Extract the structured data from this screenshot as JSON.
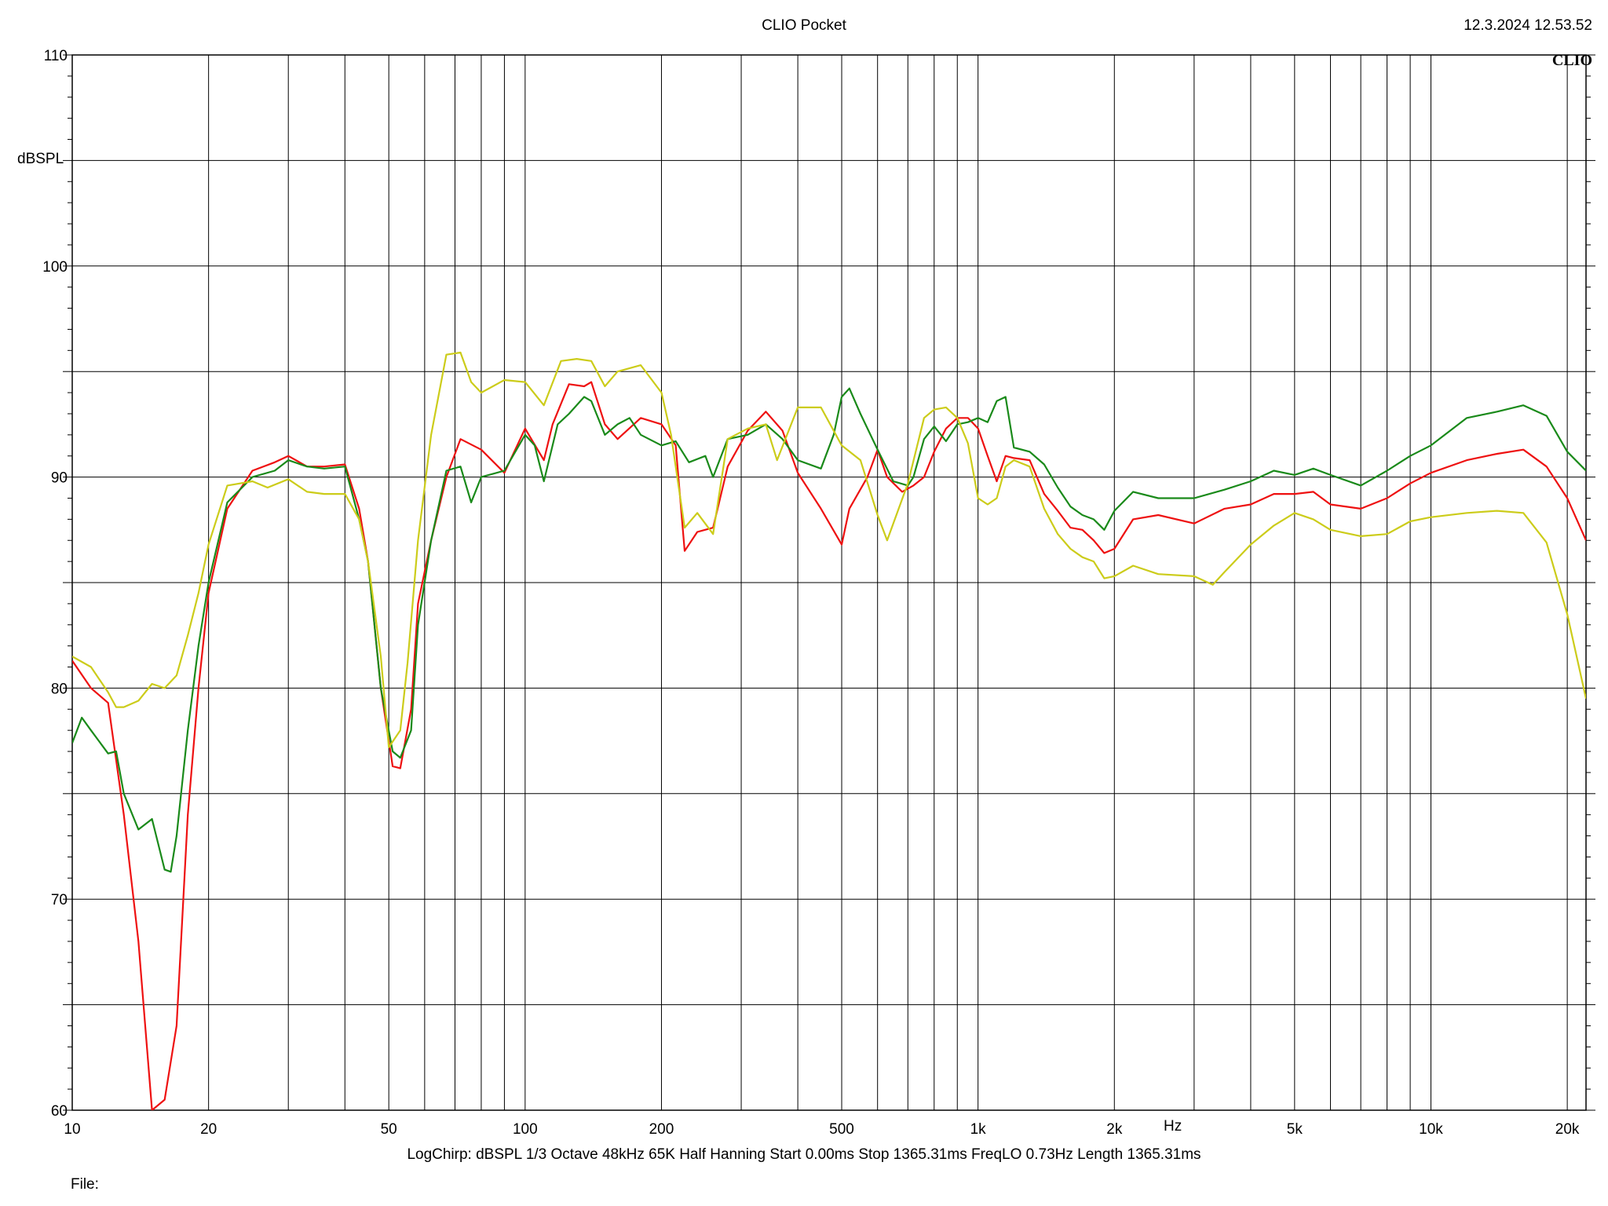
{
  "title": "CLIO Pocket",
  "timestamp": "12.3.2024 12.53.52",
  "logo": "CLIO",
  "footer": "LogChirp:  dBSPL   1/3 Octave   48kHz   65K   Half Hanning   Start 0.00ms    Stop 1365.31ms    FreqLO 0.73Hz    Length 1365.31ms",
  "file_label": "File:",
  "chart_data": {
    "type": "line",
    "title": "CLIO Pocket",
    "xlabel": "Hz",
    "ylabel": "dBSPL",
    "xscale": "log",
    "xlim": [
      10,
      22000
    ],
    "ylim": [
      60,
      110
    ],
    "grid": true,
    "x_tick_labels": [
      {
        "value": 10,
        "label": "10"
      },
      {
        "value": 20,
        "label": "20"
      },
      {
        "value": 50,
        "label": "50"
      },
      {
        "value": 100,
        "label": "100"
      },
      {
        "value": 200,
        "label": "200"
      },
      {
        "value": 500,
        "label": "500"
      },
      {
        "value": 1000,
        "label": "1k"
      },
      {
        "value": 2000,
        "label": "2k"
      },
      {
        "value": 5000,
        "label": "5k"
      },
      {
        "value": 10000,
        "label": "10k"
      },
      {
        "value": 20000,
        "label": "20k"
      }
    ],
    "y_tick_labels": [
      {
        "value": 60,
        "label": "60"
      },
      {
        "value": 70,
        "label": "70"
      },
      {
        "value": 80,
        "label": "80"
      },
      {
        "value": 90,
        "label": "90"
      },
      {
        "value": 100,
        "label": "100"
      },
      {
        "value": 110,
        "label": "110"
      }
    ],
    "series": [
      {
        "color": "#ee1111",
        "points": [
          [
            10,
            81.3
          ],
          [
            11,
            80
          ],
          [
            12,
            79.3
          ],
          [
            13,
            74
          ],
          [
            14,
            68
          ],
          [
            15,
            60
          ],
          [
            16,
            60.5
          ],
          [
            17,
            64
          ],
          [
            18,
            74
          ],
          [
            19,
            80
          ],
          [
            20,
            84.5
          ],
          [
            22,
            88.5
          ],
          [
            25,
            90.3
          ],
          [
            28,
            90.7
          ],
          [
            30,
            91
          ],
          [
            33,
            90.5
          ],
          [
            36,
            90.5
          ],
          [
            40,
            90.6
          ],
          [
            43,
            88.5
          ],
          [
            45,
            86
          ],
          [
            48,
            80
          ],
          [
            51,
            76.3
          ],
          [
            53,
            76.2
          ],
          [
            56,
            79
          ],
          [
            58,
            84
          ],
          [
            62,
            87
          ],
          [
            67,
            90
          ],
          [
            72,
            91.8
          ],
          [
            80,
            91.3
          ],
          [
            90,
            90.2
          ],
          [
            100,
            92.3
          ],
          [
            110,
            90.8
          ],
          [
            115,
            92.5
          ],
          [
            125,
            94.4
          ],
          [
            135,
            94.3
          ],
          [
            140,
            94.5
          ],
          [
            150,
            92.5
          ],
          [
            160,
            91.8
          ],
          [
            180,
            92.8
          ],
          [
            200,
            92.5
          ],
          [
            215,
            91.5
          ],
          [
            225,
            86.5
          ],
          [
            240,
            87.4
          ],
          [
            260,
            87.6
          ],
          [
            280,
            90.5
          ],
          [
            310,
            92.2
          ],
          [
            340,
            93.1
          ],
          [
            370,
            92.2
          ],
          [
            400,
            90.2
          ],
          [
            450,
            88.5
          ],
          [
            500,
            86.8
          ],
          [
            520,
            88.5
          ],
          [
            570,
            90
          ],
          [
            600,
            91.3
          ],
          [
            630,
            90
          ],
          [
            680,
            89.3
          ],
          [
            720,
            89.6
          ],
          [
            760,
            90
          ],
          [
            800,
            91.2
          ],
          [
            850,
            92.3
          ],
          [
            900,
            92.8
          ],
          [
            950,
            92.8
          ],
          [
            1000,
            92.3
          ],
          [
            1050,
            91
          ],
          [
            1100,
            89.8
          ],
          [
            1150,
            91
          ],
          [
            1200,
            90.9
          ],
          [
            1300,
            90.8
          ],
          [
            1400,
            89.2
          ],
          [
            1500,
            88.4
          ],
          [
            1600,
            87.6
          ],
          [
            1700,
            87.5
          ],
          [
            1800,
            87
          ],
          [
            1900,
            86.4
          ],
          [
            2000,
            86.6
          ],
          [
            2200,
            88
          ],
          [
            2500,
            88.2
          ],
          [
            3000,
            87.8
          ],
          [
            3500,
            88.5
          ],
          [
            4000,
            88.7
          ],
          [
            4500,
            89.2
          ],
          [
            5000,
            89.2
          ],
          [
            5500,
            89.3
          ],
          [
            6000,
            88.7
          ],
          [
            7000,
            88.5
          ],
          [
            8000,
            89
          ],
          [
            9000,
            89.7
          ],
          [
            10000,
            90.2
          ],
          [
            12000,
            90.8
          ],
          [
            14000,
            91.1
          ],
          [
            16000,
            91.3
          ],
          [
            18000,
            90.5
          ],
          [
            20000,
            89
          ],
          [
            22000,
            87
          ]
        ]
      },
      {
        "color": "#1a8a1a",
        "points": [
          [
            10,
            77.4
          ],
          [
            10.5,
            78.6
          ],
          [
            11,
            78
          ],
          [
            12,
            76.9
          ],
          [
            12.5,
            77
          ],
          [
            13,
            75
          ],
          [
            14,
            73.3
          ],
          [
            15,
            73.8
          ],
          [
            16,
            71.4
          ],
          [
            16.5,
            71.3
          ],
          [
            17,
            73
          ],
          [
            18,
            78
          ],
          [
            19,
            82
          ],
          [
            20,
            85
          ],
          [
            22,
            88.8
          ],
          [
            25,
            90
          ],
          [
            28,
            90.3
          ],
          [
            30,
            90.8
          ],
          [
            33,
            90.5
          ],
          [
            36,
            90.4
          ],
          [
            40,
            90.5
          ],
          [
            43,
            88
          ],
          [
            45,
            86
          ],
          [
            48,
            80
          ],
          [
            51,
            77
          ],
          [
            53,
            76.7
          ],
          [
            56,
            78
          ],
          [
            58,
            83
          ],
          [
            62,
            87
          ],
          [
            67,
            90.3
          ],
          [
            72,
            90.5
          ],
          [
            76,
            88.8
          ],
          [
            80,
            90
          ],
          [
            90,
            90.3
          ],
          [
            100,
            92
          ],
          [
            105,
            91.5
          ],
          [
            110,
            89.8
          ],
          [
            118,
            92.5
          ],
          [
            125,
            93
          ],
          [
            135,
            93.8
          ],
          [
            140,
            93.6
          ],
          [
            150,
            92
          ],
          [
            160,
            92.5
          ],
          [
            170,
            92.8
          ],
          [
            180,
            92
          ],
          [
            200,
            91.5
          ],
          [
            215,
            91.7
          ],
          [
            230,
            90.7
          ],
          [
            250,
            91
          ],
          [
            260,
            90
          ],
          [
            280,
            91.8
          ],
          [
            310,
            92
          ],
          [
            340,
            92.5
          ],
          [
            370,
            91.8
          ],
          [
            400,
            90.8
          ],
          [
            450,
            90.4
          ],
          [
            480,
            92
          ],
          [
            500,
            93.8
          ],
          [
            520,
            94.2
          ],
          [
            550,
            93
          ],
          [
            600,
            91.3
          ],
          [
            650,
            89.8
          ],
          [
            700,
            89.6
          ],
          [
            720,
            90
          ],
          [
            760,
            91.8
          ],
          [
            800,
            92.4
          ],
          [
            850,
            91.7
          ],
          [
            900,
            92.5
          ],
          [
            950,
            92.6
          ],
          [
            1000,
            92.8
          ],
          [
            1050,
            92.6
          ],
          [
            1100,
            93.6
          ],
          [
            1150,
            93.8
          ],
          [
            1200,
            91.4
          ],
          [
            1300,
            91.2
          ],
          [
            1400,
            90.6
          ],
          [
            1500,
            89.5
          ],
          [
            1600,
            88.6
          ],
          [
            1700,
            88.2
          ],
          [
            1800,
            88
          ],
          [
            1900,
            87.5
          ],
          [
            2000,
            88.4
          ],
          [
            2200,
            89.3
          ],
          [
            2500,
            89
          ],
          [
            3000,
            89
          ],
          [
            3500,
            89.4
          ],
          [
            4000,
            89.8
          ],
          [
            4500,
            90.3
          ],
          [
            5000,
            90.1
          ],
          [
            5500,
            90.4
          ],
          [
            6000,
            90.1
          ],
          [
            7000,
            89.6
          ],
          [
            8000,
            90.3
          ],
          [
            9000,
            91
          ],
          [
            10000,
            91.5
          ],
          [
            12000,
            92.8
          ],
          [
            14000,
            93.1
          ],
          [
            16000,
            93.4
          ],
          [
            18000,
            92.9
          ],
          [
            20000,
            91.2
          ],
          [
            22000,
            90.3
          ]
        ]
      },
      {
        "color": "#cccc1a",
        "points": [
          [
            10,
            81.5
          ],
          [
            11,
            81
          ],
          [
            12,
            79.8
          ],
          [
            12.5,
            79.1
          ],
          [
            13,
            79.1
          ],
          [
            14,
            79.4
          ],
          [
            15,
            80.2
          ],
          [
            16,
            80
          ],
          [
            17,
            80.6
          ],
          [
            18,
            82.5
          ],
          [
            19,
            84.5
          ],
          [
            20,
            86.8
          ],
          [
            22,
            89.6
          ],
          [
            25,
            89.8
          ],
          [
            27,
            89.5
          ],
          [
            30,
            89.9
          ],
          [
            33,
            89.3
          ],
          [
            36,
            89.2
          ],
          [
            40,
            89.2
          ],
          [
            43,
            88
          ],
          [
            45,
            86
          ],
          [
            48,
            81.5
          ],
          [
            50,
            77.2
          ],
          [
            53,
            78
          ],
          [
            55,
            81.2
          ],
          [
            58,
            87
          ],
          [
            62,
            92
          ],
          [
            67,
            95.8
          ],
          [
            72,
            95.9
          ],
          [
            76,
            94.5
          ],
          [
            80,
            94
          ],
          [
            90,
            94.6
          ],
          [
            100,
            94.5
          ],
          [
            110,
            93.4
          ],
          [
            120,
            95.5
          ],
          [
            130,
            95.6
          ],
          [
            140,
            95.5
          ],
          [
            150,
            94.3
          ],
          [
            160,
            95
          ],
          [
            180,
            95.3
          ],
          [
            200,
            94
          ],
          [
            210,
            92
          ],
          [
            225,
            87.6
          ],
          [
            240,
            88.3
          ],
          [
            260,
            87.3
          ],
          [
            280,
            91.8
          ],
          [
            310,
            92.3
          ],
          [
            340,
            92.5
          ],
          [
            360,
            90.8
          ],
          [
            400,
            93.3
          ],
          [
            450,
            93.3
          ],
          [
            500,
            91.5
          ],
          [
            550,
            90.8
          ],
          [
            600,
            88.2
          ],
          [
            630,
            87
          ],
          [
            700,
            89.7
          ],
          [
            760,
            92.8
          ],
          [
            800,
            93.2
          ],
          [
            850,
            93.3
          ],
          [
            900,
            92.8
          ],
          [
            950,
            91.6
          ],
          [
            1000,
            89
          ],
          [
            1050,
            88.7
          ],
          [
            1100,
            89
          ],
          [
            1150,
            90.5
          ],
          [
            1200,
            90.8
          ],
          [
            1300,
            90.5
          ],
          [
            1400,
            88.5
          ],
          [
            1500,
            87.3
          ],
          [
            1600,
            86.6
          ],
          [
            1700,
            86.2
          ],
          [
            1800,
            86
          ],
          [
            1900,
            85.2
          ],
          [
            2000,
            85.3
          ],
          [
            2200,
            85.8
          ],
          [
            2500,
            85.4
          ],
          [
            3000,
            85.3
          ],
          [
            3300,
            84.9
          ],
          [
            3500,
            85.5
          ],
          [
            4000,
            86.8
          ],
          [
            4500,
            87.7
          ],
          [
            5000,
            88.3
          ],
          [
            5500,
            88
          ],
          [
            6000,
            87.5
          ],
          [
            7000,
            87.2
          ],
          [
            8000,
            87.3
          ],
          [
            9000,
            87.9
          ],
          [
            10000,
            88.1
          ],
          [
            12000,
            88.3
          ],
          [
            14000,
            88.4
          ],
          [
            16000,
            88.3
          ],
          [
            18000,
            86.9
          ],
          [
            20000,
            83.5
          ],
          [
            22000,
            79.5
          ]
        ]
      }
    ]
  }
}
